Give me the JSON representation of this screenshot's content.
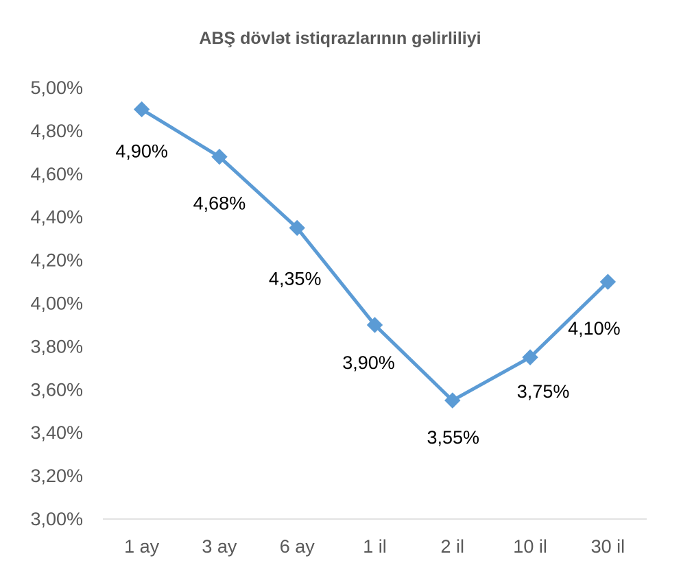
{
  "chart_data": {
    "type": "line",
    "title": "ABŞ dövlət istiqrazlarının gəlirliliyi",
    "xlabel": "",
    "ylabel": "",
    "categories": [
      "1 ay",
      "3 ay",
      "6 ay",
      "1 il",
      "2 il",
      "10 il",
      "30 il"
    ],
    "series": [
      {
        "values": [
          4.9,
          4.68,
          4.35,
          3.9,
          3.55,
          3.75,
          4.1
        ],
        "data_labels": [
          "4,90%",
          "4,68%",
          "4,35%",
          "3,90%",
          "3,55%",
          "3,75%",
          "4,10%"
        ],
        "color": "#5B9BD5",
        "marker": "diamond"
      }
    ],
    "ylim": [
      3.0,
      5.0
    ],
    "y_ticks": [
      3.0,
      3.2,
      3.4,
      3.6,
      3.8,
      4.0,
      4.2,
      4.4,
      4.6,
      4.8,
      5.0
    ],
    "y_tick_labels": [
      "3,00%",
      "3,20%",
      "3,40%",
      "3,60%",
      "3,80%",
      "4,00%",
      "4,20%",
      "4,40%",
      "4,60%",
      "4,80%",
      "5,00%"
    ],
    "grid": false,
    "legend": "none"
  },
  "colors": {
    "series": "#5B9BD5",
    "axis": "#D9D9D9",
    "text": "#595959",
    "data_label": "#000000"
  }
}
